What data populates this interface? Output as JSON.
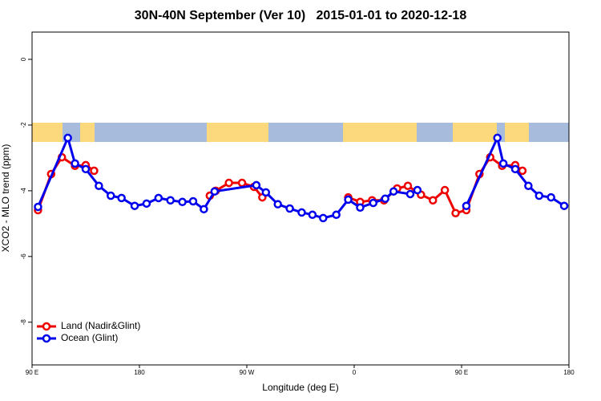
{
  "chart_data": {
    "type": "line",
    "title": "30N-40N September (Ver 10)   2015-01-01 to 2020-12-18",
    "x_label": "Longitude (deg E)",
    "y_label": "XCO2 - MLO trend (ppm)",
    "xlim": [
      90,
      540
    ],
    "xticks": [
      {
        "value": 90,
        "label": "90 E"
      },
      180,
      {
        "value": 270,
        "label": "90 W"
      },
      {
        "value": 360,
        "label": "0"
      },
      {
        "value": 450,
        "label": "90 E"
      },
      {
        "value": 540,
        "label": "180"
      }
    ],
    "ylim": [
      -9.3,
      0.83
    ],
    "yticks": [
      0,
      -2,
      -4,
      -6,
      -8
    ],
    "legend": "bottom-left",
    "series": [
      {
        "name": "Land (Nadir&Glint)",
        "color": "#ee0000",
        "x": [
          95,
          106,
          115,
          126,
          135,
          142,
          null,
          239,
          244,
          255,
          266,
          276,
          283,
          null,
          355,
          365,
          375,
          385,
          396,
          405,
          416,
          426,
          436,
          445,
          454,
          465,
          474,
          484,
          495,
          501
        ],
        "values": [
          -4.59,
          -3.49,
          -2.98,
          -3.24,
          -3.22,
          -3.39,
          null,
          -4.15,
          -4.0,
          -3.76,
          -3.76,
          -3.88,
          -4.2,
          null,
          -4.2,
          -4.34,
          -4.29,
          -4.29,
          -3.93,
          -3.85,
          -4.12,
          -4.29,
          -3.98,
          -4.68,
          -4.59,
          -3.49,
          -2.98,
          -3.24,
          -3.22,
          -3.39
        ]
      },
      {
        "name": "Ocean (Glint)",
        "color": "#0000ee",
        "x": [
          95,
          120,
          126,
          135,
          146,
          156,
          165,
          176,
          186,
          196,
          206,
          216,
          225,
          234,
          243,
          278,
          286,
          296,
          306,
          316,
          325,
          334,
          345,
          355,
          365,
          376,
          386,
          393,
          407,
          413,
          null,
          454,
          480,
          485,
          495,
          506,
          515,
          525,
          536
        ],
        "values": [
          -4.49,
          -2.39,
          -3.17,
          -3.34,
          -3.85,
          -4.15,
          -4.22,
          -4.46,
          -4.39,
          -4.22,
          -4.29,
          -4.34,
          -4.32,
          -4.56,
          -4.02,
          -3.83,
          -4.05,
          -4.41,
          -4.54,
          -4.66,
          -4.73,
          -4.83,
          -4.73,
          -4.27,
          -4.51,
          -4.37,
          -4.24,
          -4.02,
          -4.1,
          -3.98,
          null,
          -4.46,
          -2.39,
          -3.17,
          -3.34,
          -3.85,
          -4.15,
          -4.2,
          -4.46
        ]
      }
    ]
  }
}
